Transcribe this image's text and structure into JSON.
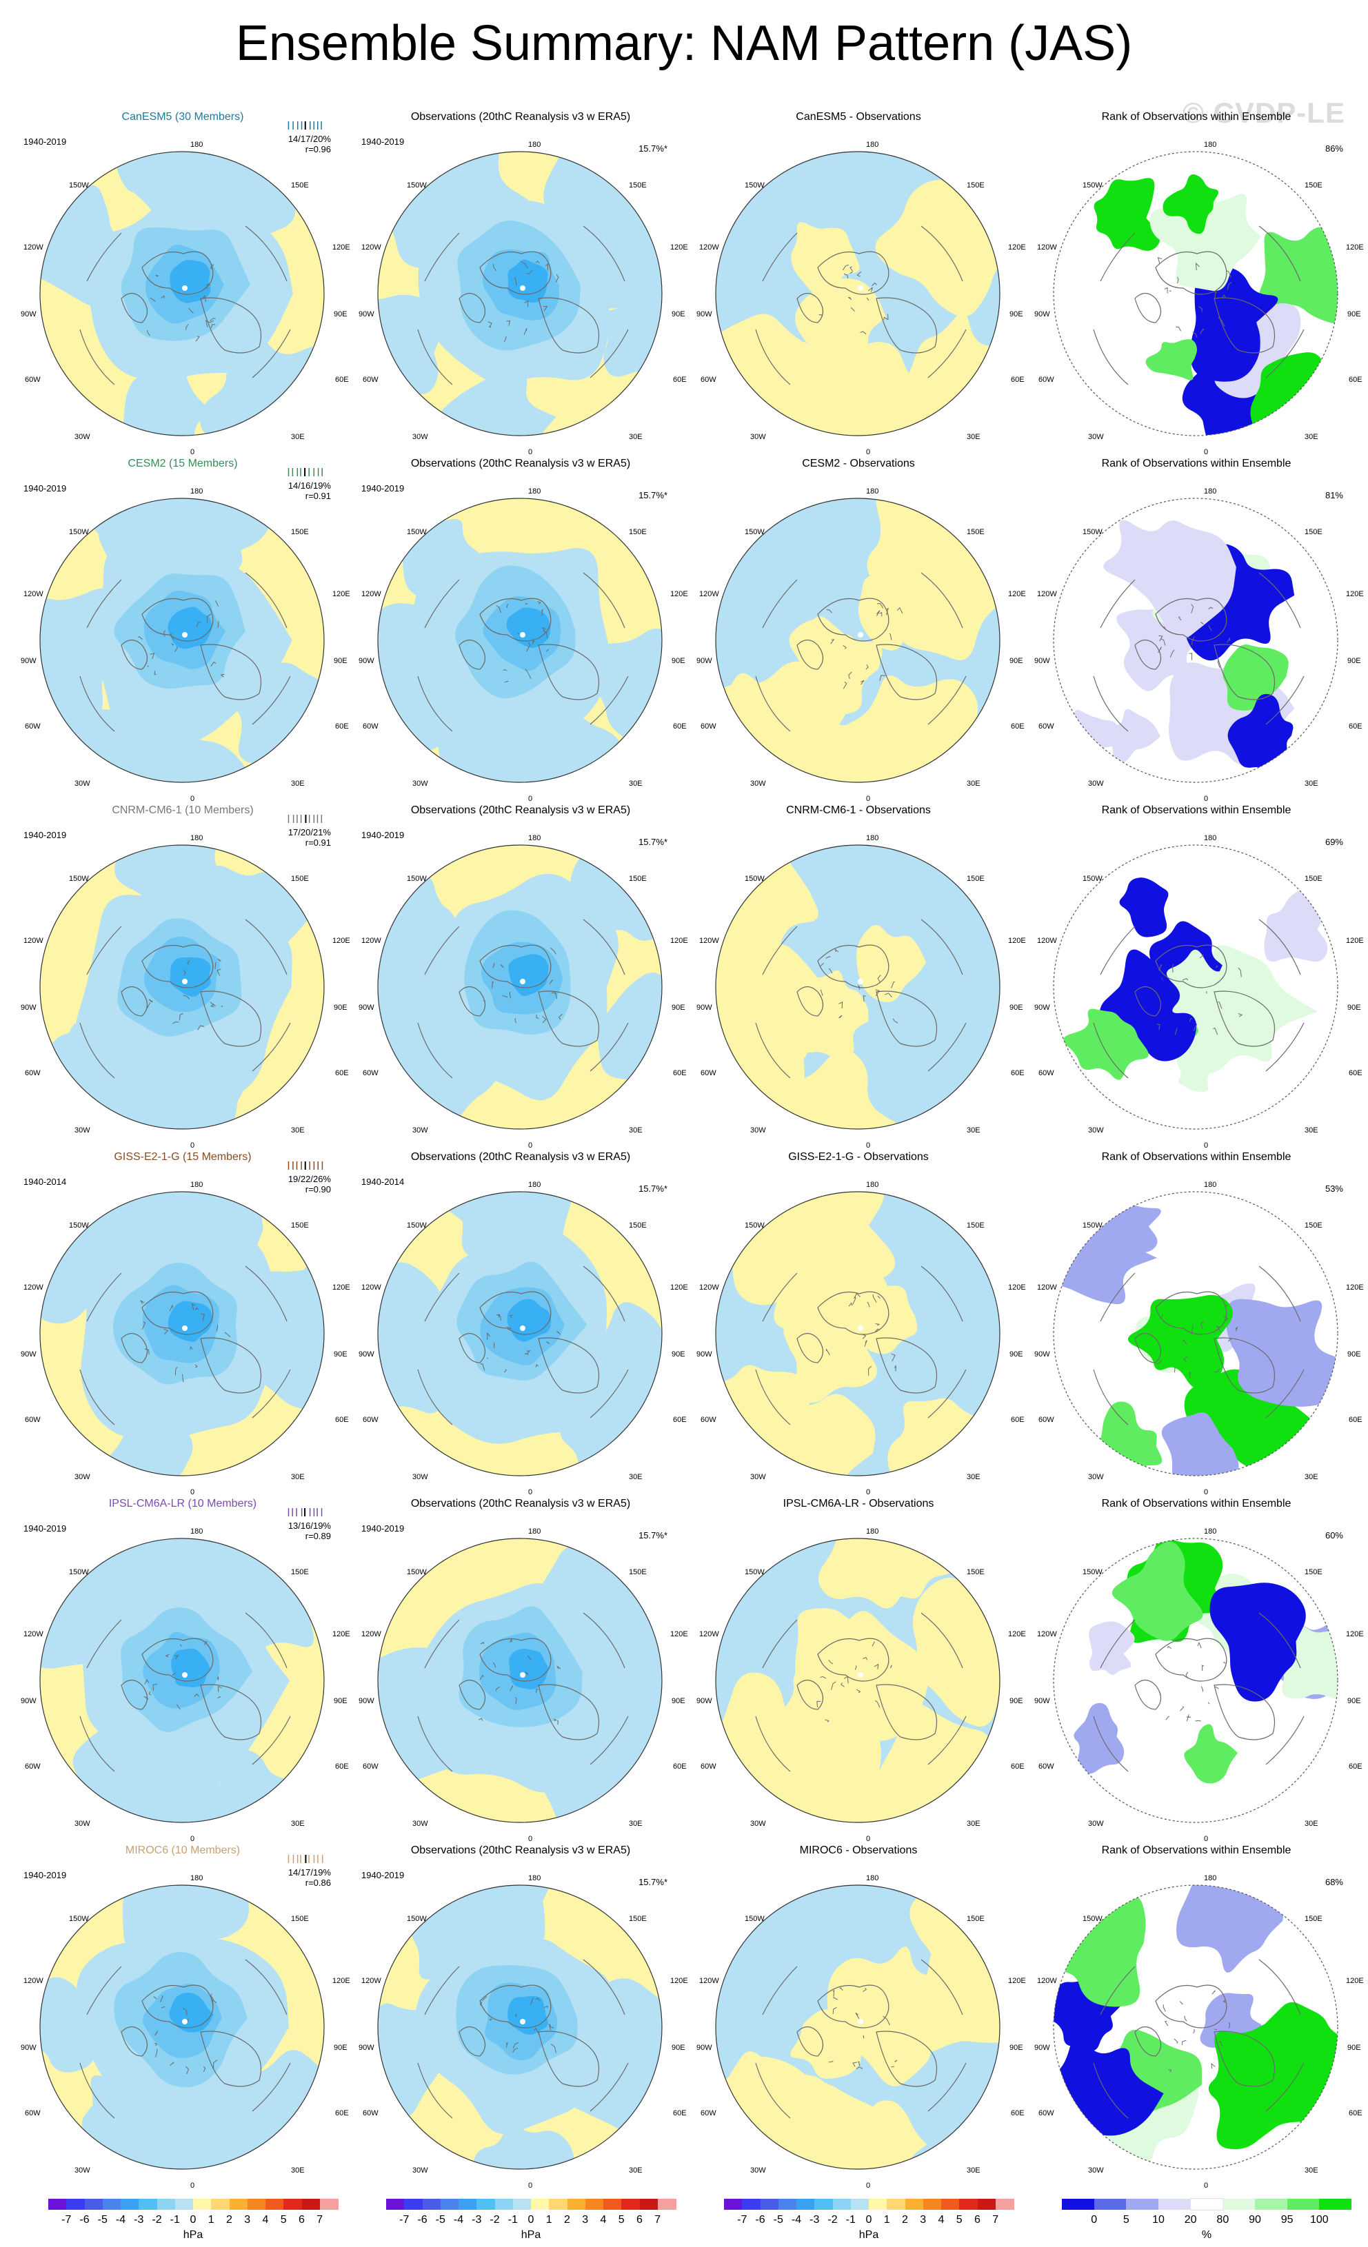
{
  "title": "Ensemble Summary: NAM Pattern (JAS)",
  "watermark": "© CVDP-LE",
  "lon_labels": {
    "top": "180",
    "l1": "150W",
    "r1": "150E",
    "l2": "120W",
    "r2": "120E",
    "l3": "90W",
    "r3": "90E",
    "l4": "60W",
    "r4": "60E",
    "l5": "30W",
    "r5": "30E",
    "bottom": "0"
  },
  "obs_title": "Observations (20thC Reanalysis v3 w ERA5)",
  "obs_stat": "15.7%*",
  "rank_title": "Rank of Observations within Ensemble",
  "rows": [
    {
      "model": "CanESM5 (30 Members)",
      "model_color": "#1a7aa0",
      "period": "1940-2019",
      "stats_pct": "14/17/20%",
      "stats_r": "r=0.96",
      "diff_title": "CanESM5 - Observations",
      "obs_period": "1940-2019",
      "rank_pct": "86%"
    },
    {
      "model": "CESM2 (15 Members)",
      "model_color": "#3a8a5a",
      "period": "1940-2019",
      "stats_pct": "14/16/19%",
      "stats_r": "r=0.91",
      "diff_title": "CESM2 - Observations",
      "obs_period": "1940-2019",
      "rank_pct": "81%"
    },
    {
      "model": "CNRM-CM6-1 (10 Members)",
      "model_color": "#777777",
      "period": "1940-2019",
      "stats_pct": "17/20/21%",
      "stats_r": "r=0.91",
      "diff_title": "CNRM-CM6-1 - Observations",
      "obs_period": "1940-2019",
      "rank_pct": "69%"
    },
    {
      "model": "GISS-E2-1-G (15 Members)",
      "model_color": "#8a4a20",
      "period": "1940-2014",
      "stats_pct": "19/22/26%",
      "stats_r": "r=0.90",
      "diff_title": "GISS-E2-1-G - Observations",
      "obs_period": "1940-2014",
      "rank_pct": "53%"
    },
    {
      "model": "IPSL-CM6A-LR (10 Members)",
      "model_color": "#7a4ab0",
      "period": "1940-2019",
      "stats_pct": "13/16/19%",
      "stats_r": "r=0.89",
      "diff_title": "IPSL-CM6A-LR - Observations",
      "obs_period": "1940-2019",
      "rank_pct": "60%"
    },
    {
      "model": "MIROC6 (10 Members)",
      "model_color": "#c8a070",
      "period": "1940-2019",
      "stats_pct": "14/17/19%",
      "stats_r": "r=0.86",
      "diff_title": "MIROC6 - Observations",
      "obs_period": "1940-2019",
      "rank_pct": "68%"
    }
  ],
  "hpa_bar": {
    "labels": [
      "-7",
      "-6",
      "-5",
      "-4",
      "-3",
      "-2",
      "-1",
      "0",
      "1",
      "2",
      "3",
      "4",
      "5",
      "6",
      "7"
    ],
    "colors": [
      "#6a14d8",
      "#3c3cf0",
      "#4a5ce8",
      "#4c82ee",
      "#39a0f2",
      "#4ec0f4",
      "#8ed4f2",
      "#b8e2f4",
      "#fff8a8",
      "#fdd870",
      "#fcb030",
      "#f88620",
      "#f05a1c",
      "#e0281c",
      "#c81818",
      "#f4a0a0"
    ],
    "unit": "hPa"
  },
  "pct_bar": {
    "labels": [
      "0",
      "5",
      "10",
      "20",
      "80",
      "90",
      "95",
      "100"
    ],
    "colors": [
      "#1010e0",
      "#5a6ae8",
      "#a0a8f0",
      "#dcdcf8",
      "#ffffff",
      "#e0fae0",
      "#a8f4a8",
      "#60ec60",
      "#10e010"
    ],
    "unit": "%"
  }
}
